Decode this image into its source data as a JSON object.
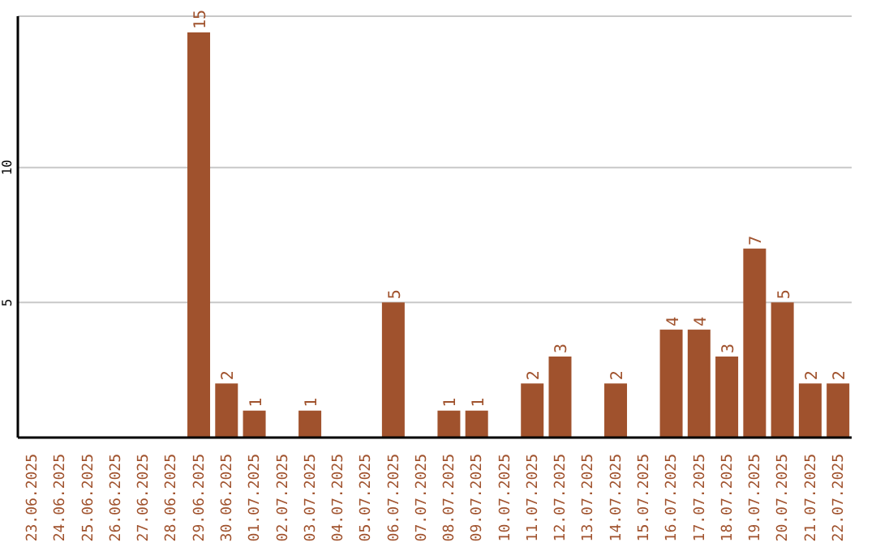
{
  "chart_data": {
    "type": "bar",
    "categories": [
      "23.06.2025",
      "24.06.2025",
      "25.06.2025",
      "26.06.2025",
      "27.06.2025",
      "28.06.2025",
      "29.06.2025",
      "30.06.2025",
      "01.07.2025",
      "02.07.2025",
      "03.07.2025",
      "04.07.2025",
      "05.07.2025",
      "06.07.2025",
      "07.07.2025",
      "08.07.2025",
      "09.07.2025",
      "10.07.2025",
      "11.07.2025",
      "12.07.2025",
      "13.07.2025",
      "14.07.2025",
      "15.07.2025",
      "16.07.2025",
      "17.07.2025",
      "18.07.2025",
      "19.07.2025",
      "20.07.2025",
      "21.07.2025",
      "22.07.2025"
    ],
    "values": [
      0,
      0,
      0,
      0,
      0,
      0,
      15,
      2,
      1,
      0,
      1,
      0,
      0,
      5,
      0,
      1,
      1,
      0,
      2,
      3,
      0,
      2,
      0,
      4,
      4,
      3,
      7,
      5,
      2,
      2
    ],
    "value_labels": [
      null,
      null,
      null,
      null,
      null,
      null,
      "15",
      "2",
      "1",
      null,
      "1",
      null,
      null,
      "5",
      null,
      "1",
      "1",
      null,
      "2",
      "3",
      null,
      "2",
      null,
      "4",
      "4",
      "3",
      "7",
      "5",
      "2",
      "2"
    ],
    "color": "#a0522d",
    "ylim": [
      0,
      15.6
    ],
    "yticks": [
      5,
      10
    ],
    "grid": "y"
  }
}
